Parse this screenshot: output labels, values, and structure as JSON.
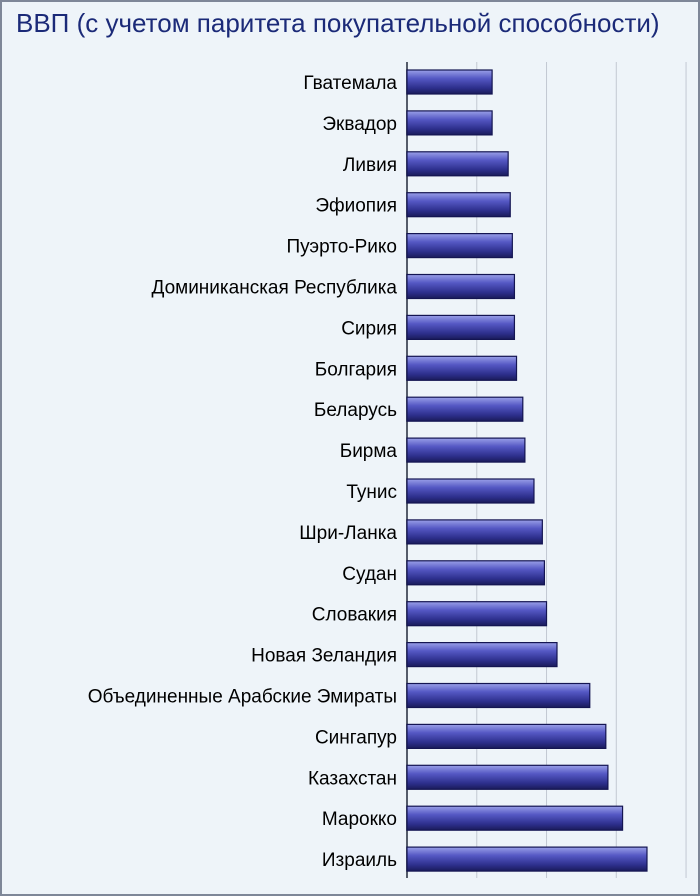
{
  "chart_data": {
    "type": "bar",
    "orientation": "horizontal",
    "title": "ВВП (с учетом паритета покупательной способности)",
    "xlabel": "",
    "ylabel": "",
    "categories": [
      "Гватемала",
      "Эквадор",
      "Ливия",
      "Эфиопия",
      "Пуэрто-Рико",
      "Доминиканская Республика",
      "Сирия",
      "Болгария",
      "Беларусь",
      "Бирма",
      "Тунис",
      "Шри-Ланка",
      "Судан",
      "Словакия",
      "Новая Зеландия",
      "Объединенные Арабские Эмираты",
      "Сингапур",
      "Казахстан",
      "Марокко",
      "Израиль"
    ],
    "values": [
      12.2,
      12.2,
      14.5,
      14.8,
      15.1,
      15.4,
      15.4,
      15.7,
      16.6,
      16.9,
      18.2,
      19.4,
      19.7,
      20.0,
      21.5,
      26.2,
      28.5,
      28.8,
      30.9,
      34.4
    ],
    "xlim": [
      0,
      42
    ],
    "grid": true,
    "bar_color": "#2d2f8c",
    "background_color": "#eef4f9",
    "title_color": "#1b2a78"
  }
}
